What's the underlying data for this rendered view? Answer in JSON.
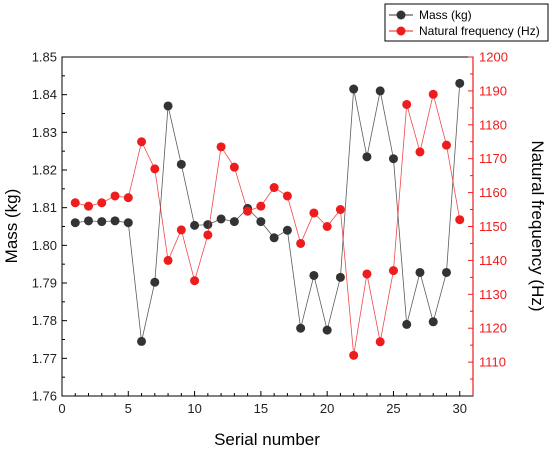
{
  "chart_data": {
    "type": "line",
    "title": "",
    "xlabel": "Serial number",
    "ylabel": "Mass (kg)",
    "y2label": "Natural frequency (Hz)",
    "xlim": [
      0,
      31
    ],
    "ylim": [
      1.76,
      1.85
    ],
    "y2lim": [
      1100,
      1200
    ],
    "xticks": [
      "0",
      "5",
      "10",
      "15",
      "20",
      "25",
      "30"
    ],
    "yticks": [
      "1.76",
      "1.77",
      "1.78",
      "1.79",
      "1.80",
      "1.81",
      "1.82",
      "1.83",
      "1.84",
      "1.85"
    ],
    "y2ticks": [
      "1110",
      "1120",
      "1130",
      "1140",
      "1150",
      "1160",
      "1170",
      "1180",
      "1190",
      "1200"
    ],
    "grid": false,
    "legend_position": "top-right",
    "x": [
      1,
      2,
      3,
      4,
      5,
      6,
      7,
      8,
      9,
      10,
      11,
      12,
      13,
      14,
      15,
      16,
      17,
      18,
      19,
      20,
      21,
      22,
      23,
      24,
      25,
      26,
      27,
      28,
      29,
      30
    ],
    "series": [
      {
        "name": "Mass (kg)",
        "axis": "left",
        "color": "#333333",
        "values": [
          1.806,
          1.8065,
          1.8063,
          1.8065,
          1.806,
          1.7745,
          1.7902,
          1.837,
          1.8215,
          1.8053,
          1.8055,
          1.807,
          1.8063,
          1.8098,
          1.8063,
          1.802,
          1.804,
          1.778,
          1.792,
          1.7775,
          1.7915,
          1.8415,
          1.8235,
          1.841,
          1.823,
          1.779,
          1.7928,
          1.7797,
          1.7928,
          1.843
        ]
      },
      {
        "name": "Natural frequency (Hz)",
        "axis": "right",
        "color": "#ee1c1c",
        "values": [
          1157,
          1156,
          1157,
          1159,
          1158.5,
          1175,
          1167,
          1140,
          1149,
          1134,
          1147.5,
          1173.5,
          1167.5,
          1154.5,
          1156,
          1161.5,
          1159,
          1145,
          1154,
          1150,
          1155,
          1112,
          1136,
          1116,
          1137,
          1186,
          1172,
          1189,
          1174,
          1152
        ]
      }
    ]
  }
}
